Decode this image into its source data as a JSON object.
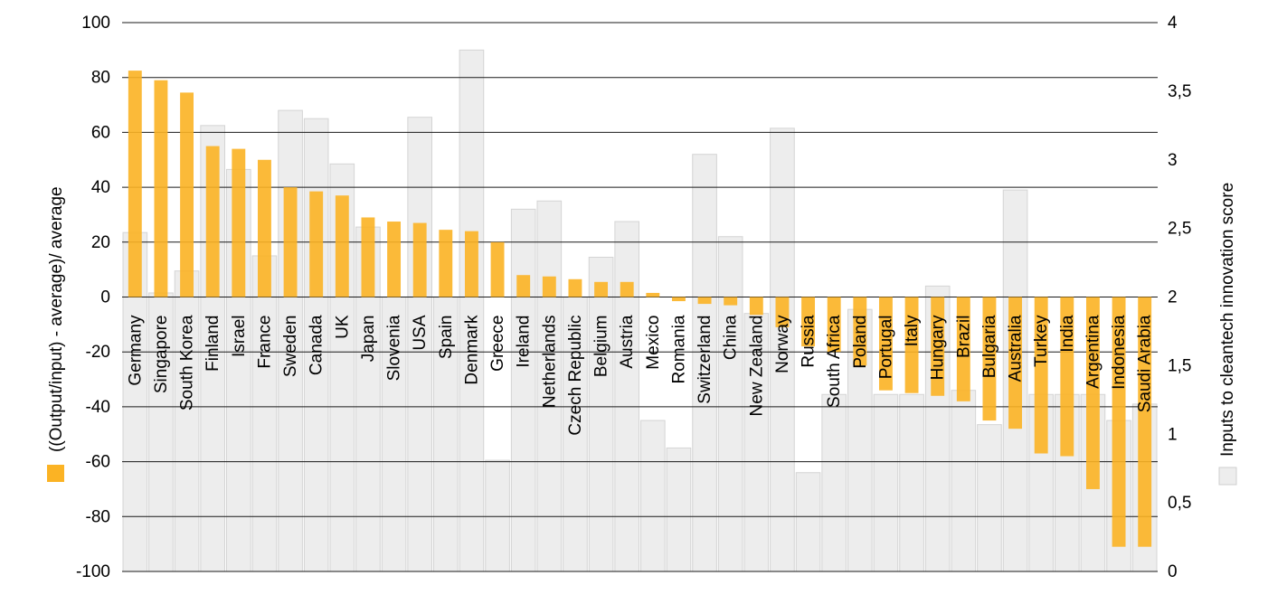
{
  "chart_data": {
    "type": "bar",
    "categories": [
      "Germany",
      "Singapore",
      "South Korea",
      "Finland",
      "Israel",
      "France",
      "Sweden",
      "Canada",
      "UK",
      "Japan",
      "Slovenia",
      "USA",
      "Spain",
      "Denmark",
      "Greece",
      "Ireland",
      "Netherlands",
      "Czech Republic",
      "Belgium",
      "Austria",
      "Mexico",
      "Romania",
      "Switzerland",
      "China",
      "New Zealand",
      "Norway",
      "Russia",
      "South Africa",
      "Poland",
      "Portugal",
      "Italy",
      "Hungary",
      "Brazil",
      "Bulgaria",
      "Australia",
      "Turkey",
      "India",
      "Argentina",
      "Indonesia",
      "Saudi Arabia"
    ],
    "series": [
      {
        "name": "((Output/input) - average)/ average",
        "axis": "left",
        "color": "#FBB324",
        "values": [
          82.5,
          79,
          74.5,
          55,
          54,
          50,
          40,
          38.5,
          37,
          29,
          27.5,
          27,
          24.5,
          24,
          20,
          8,
          7.5,
          6.5,
          5.5,
          5.5,
          1.5,
          -1.5,
          -2.5,
          -3,
          -6.5,
          -11,
          -18,
          -20,
          -25,
          -34,
          -35,
          -36,
          -38,
          -45,
          -48,
          -57,
          -58,
          -70,
          -91,
          -91
        ]
      },
      {
        "name": "Inputs to cleantech innovation score",
        "axis": "right",
        "color": "#EDEDED",
        "values": [
          2.47,
          2.03,
          2.19,
          3.25,
          2.93,
          2.3,
          3.36,
          3.3,
          2.97,
          2.51,
          2.0,
          3.31,
          2.0,
          3.8,
          0.81,
          2.64,
          2.7,
          2.0,
          2.29,
          2.55,
          1.1,
          0.9,
          3.04,
          2.44,
          1.88,
          3.23,
          0.72,
          1.29,
          1.91,
          1.29,
          1.29,
          2.08,
          1.32,
          1.07,
          2.78,
          1.29,
          1.29,
          1.29,
          1.1,
          1.22
        ]
      }
    ],
    "y_left": {
      "label": "((Output/input) - average)/ average",
      "ylim": [
        -100,
        100
      ],
      "ticks": [
        "100",
        "80",
        "60",
        "40",
        "20",
        "0",
        "-20",
        "-40",
        "-60",
        "-80",
        "-100"
      ],
      "tick_values": [
        100,
        80,
        60,
        40,
        20,
        0,
        -20,
        -40,
        -60,
        -80,
        -100
      ]
    },
    "y_right": {
      "label": "Inputs to cleantech innovation score",
      "ylim": [
        0,
        4
      ],
      "ticks": [
        "4",
        "3,5",
        "3",
        "2,5",
        "2",
        "1,5",
        "1",
        "0,5",
        "0"
      ],
      "tick_values": [
        4,
        3.5,
        3,
        2.5,
        2,
        1.5,
        1,
        0.5,
        0
      ]
    },
    "grid": true
  }
}
